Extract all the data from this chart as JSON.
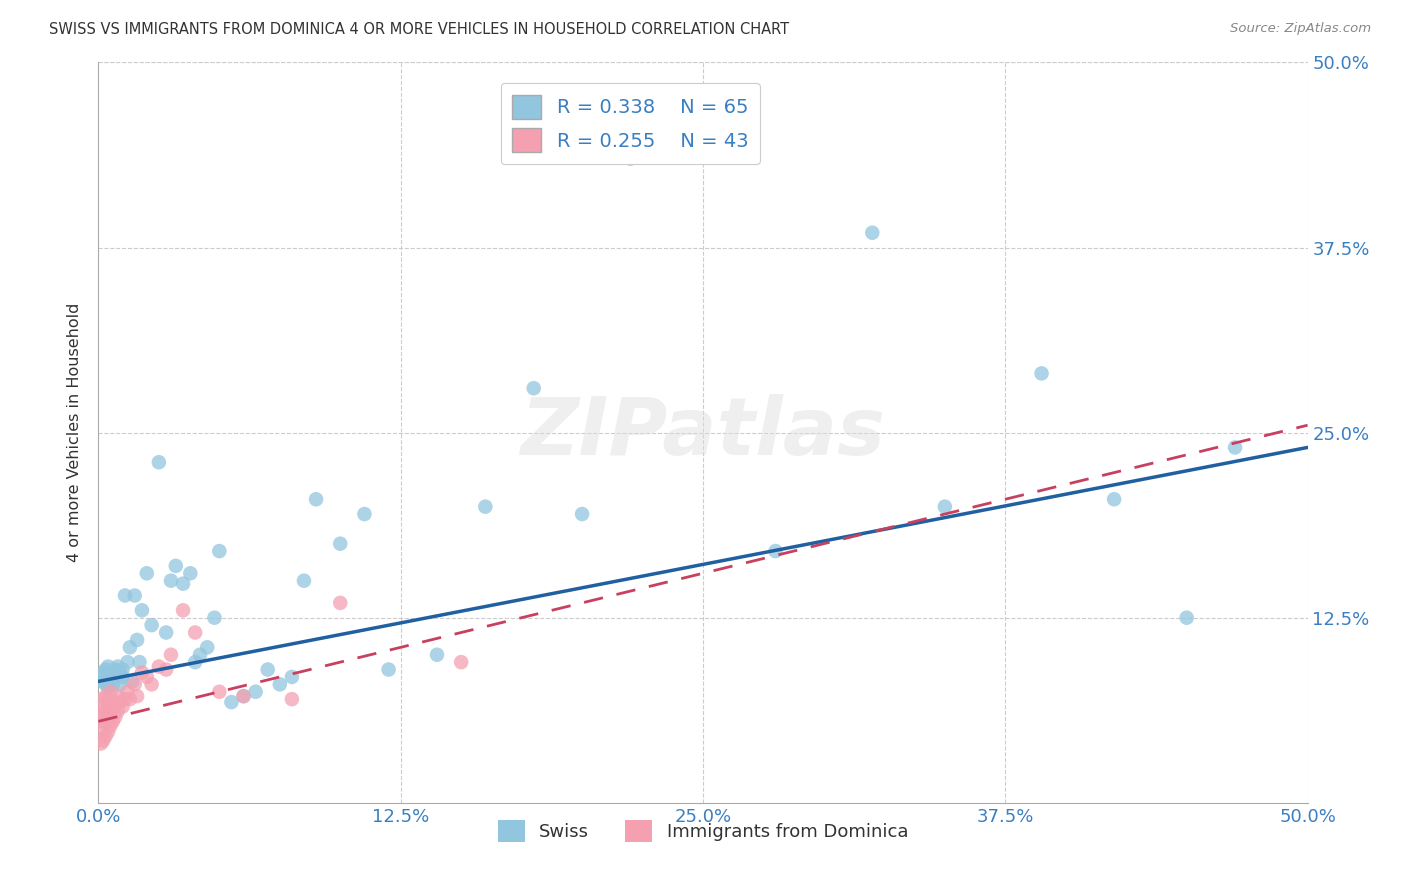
{
  "title": "SWISS VS IMMIGRANTS FROM DOMINICA 4 OR MORE VEHICLES IN HOUSEHOLD CORRELATION CHART",
  "source": "Source: ZipAtlas.com",
  "ylabel": "4 or more Vehicles in Household",
  "xlim": [
    0.0,
    0.5
  ],
  "ylim": [
    0.0,
    0.5
  ],
  "xtick_labels": [
    "0.0%",
    "12.5%",
    "25.0%",
    "37.5%",
    "50.0%"
  ],
  "xtick_vals": [
    0.0,
    0.125,
    0.25,
    0.375,
    0.5
  ],
  "ytick_labels": [
    "50.0%",
    "37.5%",
    "25.0%",
    "12.5%"
  ],
  "ytick_vals": [
    0.5,
    0.375,
    0.25,
    0.125
  ],
  "swiss_R": 0.338,
  "swiss_N": 65,
  "dominica_R": 0.255,
  "dominica_N": 43,
  "swiss_color": "#92C5DE",
  "dominica_color": "#F4A0B0",
  "swiss_line_color": "#2060A0",
  "dominica_line_color": "#C84060",
  "watermark_text": "ZIPatlas",
  "swiss_x": [
    0.001,
    0.002,
    0.002,
    0.003,
    0.003,
    0.004,
    0.004,
    0.004,
    0.005,
    0.005,
    0.006,
    0.006,
    0.007,
    0.007,
    0.008,
    0.008,
    0.009,
    0.009,
    0.01,
    0.01,
    0.011,
    0.012,
    0.013,
    0.014,
    0.015,
    0.016,
    0.017,
    0.018,
    0.02,
    0.022,
    0.025,
    0.028,
    0.03,
    0.032,
    0.035,
    0.038,
    0.04,
    0.042,
    0.045,
    0.048,
    0.05,
    0.055,
    0.06,
    0.065,
    0.07,
    0.075,
    0.08,
    0.085,
    0.09,
    0.1,
    0.11,
    0.12,
    0.14,
    0.16,
    0.18,
    0.2,
    0.22,
    0.25,
    0.28,
    0.32,
    0.35,
    0.39,
    0.42,
    0.45,
    0.47
  ],
  "swiss_y": [
    0.085,
    0.082,
    0.088,
    0.08,
    0.09,
    0.078,
    0.085,
    0.092,
    0.083,
    0.088,
    0.086,
    0.08,
    0.09,
    0.085,
    0.087,
    0.092,
    0.088,
    0.08,
    0.085,
    0.09,
    0.14,
    0.095,
    0.105,
    0.082,
    0.14,
    0.11,
    0.095,
    0.13,
    0.155,
    0.12,
    0.23,
    0.115,
    0.15,
    0.16,
    0.148,
    0.155,
    0.095,
    0.1,
    0.105,
    0.125,
    0.17,
    0.068,
    0.072,
    0.075,
    0.09,
    0.08,
    0.085,
    0.15,
    0.205,
    0.175,
    0.195,
    0.09,
    0.1,
    0.2,
    0.28,
    0.195,
    0.435,
    0.44,
    0.17,
    0.385,
    0.2,
    0.29,
    0.205,
    0.125,
    0.24
  ],
  "dominica_x": [
    0.001,
    0.001,
    0.001,
    0.002,
    0.002,
    0.002,
    0.002,
    0.003,
    0.003,
    0.003,
    0.003,
    0.004,
    0.004,
    0.004,
    0.005,
    0.005,
    0.005,
    0.006,
    0.006,
    0.007,
    0.007,
    0.008,
    0.008,
    0.009,
    0.01,
    0.011,
    0.012,
    0.013,
    0.015,
    0.016,
    0.018,
    0.02,
    0.022,
    0.025,
    0.028,
    0.03,
    0.035,
    0.04,
    0.05,
    0.06,
    0.08,
    0.1,
    0.15
  ],
  "dominica_y": [
    0.04,
    0.055,
    0.065,
    0.042,
    0.05,
    0.06,
    0.07,
    0.045,
    0.055,
    0.062,
    0.072,
    0.048,
    0.058,
    0.068,
    0.052,
    0.062,
    0.075,
    0.055,
    0.065,
    0.058,
    0.068,
    0.062,
    0.072,
    0.068,
    0.065,
    0.07,
    0.075,
    0.07,
    0.08,
    0.072,
    0.088,
    0.085,
    0.08,
    0.092,
    0.09,
    0.1,
    0.13,
    0.115,
    0.075,
    0.072,
    0.07,
    0.135,
    0.095
  ],
  "swiss_line_x0": 0.0,
  "swiss_line_y0": 0.082,
  "swiss_line_x1": 0.5,
  "swiss_line_y1": 0.24,
  "dominica_line_x0": 0.0,
  "dominica_line_y0": 0.055,
  "dominica_line_x1": 0.5,
  "dominica_line_y1": 0.255
}
